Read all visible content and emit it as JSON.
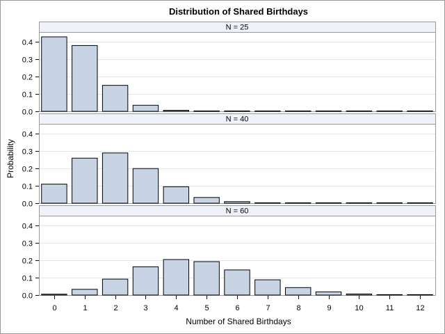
{
  "chart_data": {
    "type": "bar",
    "title": "Distribution of Shared Birthdays",
    "xlabel": "Number of Shared Birthdays",
    "ylabel": "Probability",
    "categories": [
      "0",
      "1",
      "2",
      "3",
      "4",
      "5",
      "6",
      "7",
      "8",
      "9",
      "10",
      "11",
      "12"
    ],
    "ylim": [
      0,
      0.45
    ],
    "yticks": [
      "0.0",
      "0.1",
      "0.2",
      "0.3",
      "0.4"
    ],
    "grid": true,
    "colors": {
      "bar_fill": "#c8d4e4",
      "bar_stroke": "#000000",
      "strip_fill": "#f0f2fa",
      "grid": "#e6e6e6",
      "frame": "#999999"
    },
    "panels": [
      {
        "name": "N = 25",
        "values": [
          0.43,
          0.38,
          0.15,
          0.035,
          0.006,
          0.001,
          0.0001,
          0,
          0,
          0,
          0,
          0,
          0
        ]
      },
      {
        "name": "N = 40",
        "values": [
          0.11,
          0.26,
          0.29,
          0.2,
          0.095,
          0.033,
          0.009,
          0.002,
          0.0004,
          0.0001,
          0,
          0,
          0
        ]
      },
      {
        "name": "N = 60",
        "values": [
          0.005,
          0.033,
          0.092,
          0.163,
          0.205,
          0.193,
          0.145,
          0.088,
          0.043,
          0.018,
          0.006,
          0.002,
          0.0005
        ]
      }
    ]
  }
}
